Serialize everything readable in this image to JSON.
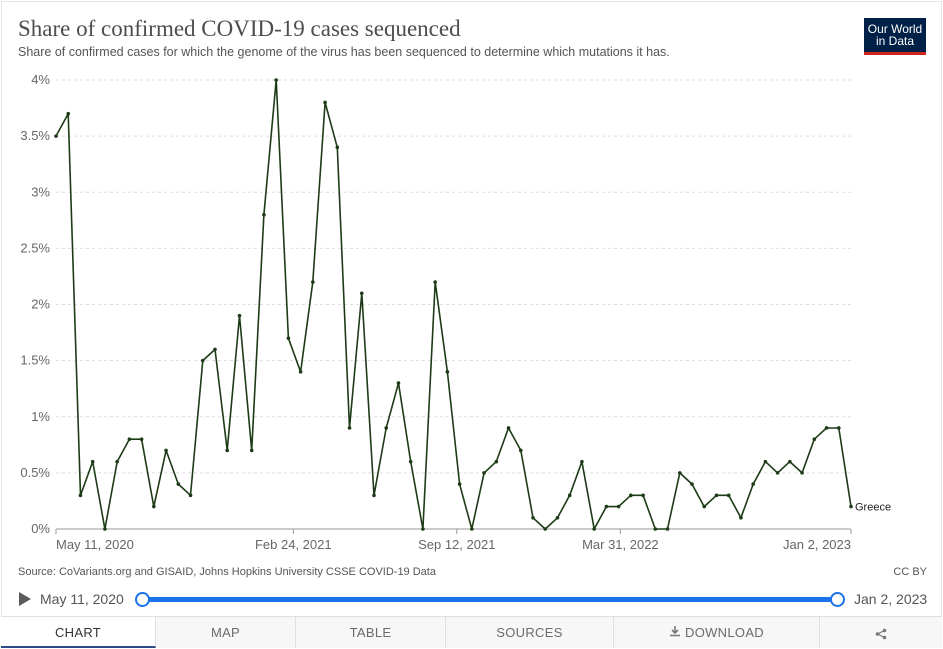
{
  "header": {
    "title": "Share of confirmed COVID-19 cases sequenced",
    "subtitle": "Share of confirmed cases for which the genome of the virus has been sequenced to determine which mutations it has.",
    "logo_line1": "Our World",
    "logo_line2": "in Data"
  },
  "footer": {
    "source": "Source: CoVariants.org and GISAID, Johns Hopkins University CSSE COVID-19 Data",
    "license": "CC BY"
  },
  "timeline": {
    "start_label": "May 11, 2020",
    "end_label": "Jan 2, 2023",
    "play_icon": "play-icon"
  },
  "tabs": [
    {
      "label": "CHART",
      "active": true
    },
    {
      "label": "MAP",
      "active": false
    },
    {
      "label": "TABLE",
      "active": false
    },
    {
      "label": "SOURCES",
      "active": false
    },
    {
      "label": "DOWNLOAD",
      "active": false,
      "icon": "download-icon"
    },
    {
      "label": "",
      "active": false,
      "icon": "share-icon"
    }
  ],
  "colors": {
    "line": "#1d3b16",
    "grid": "#dddddd",
    "accent": "#1a73e8",
    "logo_bg": "#002147",
    "logo_bar": "#ce261e"
  },
  "chart_data": {
    "type": "line",
    "title": "Share of confirmed COVID-19 cases sequenced",
    "xlabel": "",
    "ylabel": "",
    "y_ticks": [
      "0%",
      "0.5%",
      "1%",
      "1.5%",
      "2%",
      "2.5%",
      "3%",
      "3.5%",
      "4%"
    ],
    "y_tick_values": [
      0,
      0.5,
      1,
      1.5,
      2,
      2.5,
      3,
      3.5,
      4
    ],
    "x_ticks": [
      "May 11, 2020",
      "Feb 24, 2021",
      "Sep 12, 2021",
      "Mar 31, 2022",
      "Jan 2, 2023"
    ],
    "ylim": [
      0,
      4
    ],
    "grid": true,
    "series": [
      {
        "name": "Greece",
        "values": [
          3.5,
          3.7,
          0.3,
          0.6,
          0,
          0.6,
          0.8,
          0.8,
          0.2,
          0.7,
          0.4,
          0.3,
          1.5,
          1.6,
          0.7,
          1.9,
          0.7,
          2.8,
          4.0,
          1.7,
          1.4,
          2.2,
          3.8,
          3.4,
          0.9,
          2.1,
          0.3,
          0.9,
          1.3,
          0.6,
          0,
          2.2,
          1.4,
          0.4,
          0,
          0.5,
          0.6,
          0.9,
          0.7,
          0.1,
          0,
          0.1,
          0.3,
          0.6,
          0,
          0.2,
          0.2,
          0.3,
          0.3,
          0,
          0,
          0.5,
          0.4,
          0.2,
          0.3,
          0.3,
          0.1,
          0.4,
          0.6,
          0.5,
          0.6,
          0.5,
          0.8,
          0.9,
          0.9,
          0.2
        ],
        "point_dates": [
          "May 11, 2020",
          "",
          "",
          "",
          "",
          "",
          "",
          "",
          "",
          "",
          "",
          "",
          "",
          "",
          "",
          "",
          "",
          "",
          "",
          "",
          "",
          "",
          "",
          "",
          "",
          "",
          "",
          "",
          "",
          "",
          "",
          "",
          "",
          "",
          "",
          "",
          "",
          "",
          "",
          "",
          "",
          "",
          "",
          "",
          "",
          "",
          "",
          "",
          "",
          "",
          "",
          "",
          "",
          "",
          "",
          "",
          "",
          "",
          "",
          "",
          "",
          "",
          "",
          "",
          "",
          "Jan 2, 2023"
        ]
      }
    ]
  }
}
